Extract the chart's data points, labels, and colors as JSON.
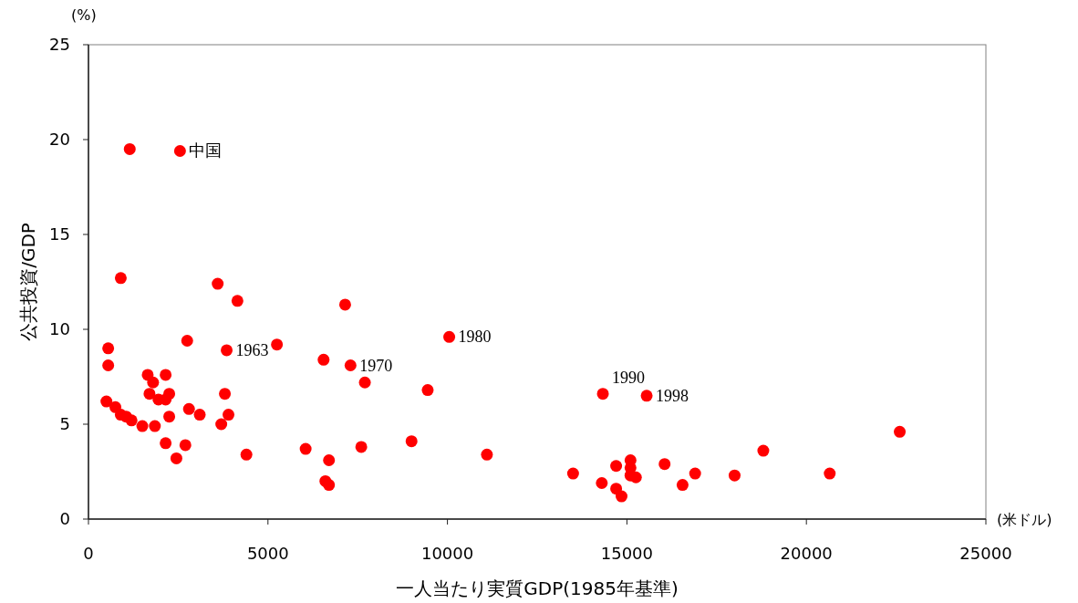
{
  "chart_data": {
    "type": "scatter",
    "xlabel": "一人当たり実質GDP(1985年基準)",
    "ylabel": "公共投資/GDP",
    "xlim": [
      0,
      25000
    ],
    "ylim": [
      0,
      25
    ],
    "xticks": [
      0,
      5000,
      10000,
      15000,
      20000,
      25000
    ],
    "yticks": [
      0,
      5,
      10,
      15,
      20,
      25
    ],
    "grid": false,
    "marker": "circle",
    "series": [
      {
        "color": "#ff0000",
        "x": [
          1150,
          2550,
          900,
          3600,
          4150,
          7150,
          10050,
          550,
          2750,
          5250,
          3850,
          6550,
          550,
          7300,
          7700,
          1650,
          2150,
          1800,
          9450,
          1700,
          3800,
          2250,
          14330,
          15550,
          500,
          1950,
          2150,
          750,
          2800,
          900,
          1050,
          1200,
          2250,
          3100,
          3900,
          3700,
          1500,
          1850,
          22600,
          2150,
          2700,
          9000,
          7600,
          6050,
          18800,
          4400,
          11100,
          2450,
          6700,
          15100,
          14700,
          15100,
          16050,
          13500,
          15100,
          15250,
          16900,
          18000,
          20650,
          6600,
          6700,
          14300,
          14700,
          14850,
          16550
        ],
        "values": [
          19.5,
          19.4,
          12.7,
          12.4,
          11.5,
          11.3,
          9.6,
          9.0,
          9.4,
          9.2,
          8.9,
          8.4,
          8.1,
          8.1,
          7.2,
          7.6,
          7.6,
          7.2,
          6.8,
          6.6,
          6.6,
          6.6,
          6.6,
          6.5,
          6.2,
          6.3,
          6.3,
          5.9,
          5.8,
          5.5,
          5.4,
          5.2,
          5.4,
          5.5,
          5.5,
          5.0,
          4.9,
          4.9,
          4.6,
          4.0,
          3.9,
          4.1,
          3.8,
          3.7,
          3.6,
          3.4,
          3.4,
          3.2,
          3.1,
          3.1,
          2.8,
          2.7,
          2.9,
          2.4,
          2.3,
          2.2,
          2.4,
          2.3,
          2.4,
          2.0,
          1.8,
          1.9,
          1.6,
          1.2,
          1.8
        ]
      }
    ],
    "annotations": [
      {
        "text": "中国",
        "x": 2550,
        "y": 19.4
      },
      {
        "text": "1963",
        "x": 3850,
        "y": 8.9
      },
      {
        "text": "1970",
        "x": 7300,
        "y": 8.1
      },
      {
        "text": "1980",
        "x": 10050,
        "y": 9.6
      },
      {
        "text": "1990",
        "x": 14330,
        "y": 6.6
      },
      {
        "text": "1998",
        "x": 15550,
        "y": 6.5
      },
      "(%)",
      "(米ドル)"
    ]
  }
}
